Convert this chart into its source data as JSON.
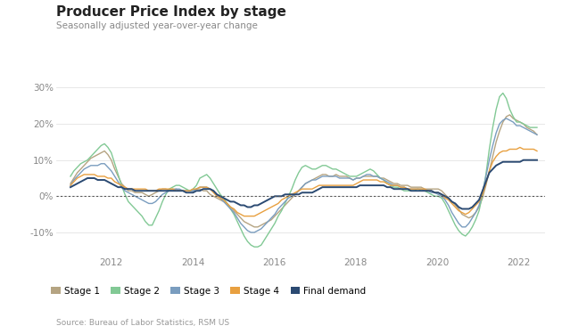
{
  "title": "Producer Price Index by stage",
  "subtitle": "Seasonally adjusted year-over-year change",
  "source": "Source: Bureau of Labor Statistics, RSM US",
  "ylim": [
    -15,
    33
  ],
  "yticks": [
    -10,
    0,
    10,
    20,
    30
  ],
  "ytick_labels": [
    "-10%",
    "0%",
    "10%",
    "20%",
    "30%"
  ],
  "background_color": "#ffffff",
  "colors": {
    "stage1": "#b5a482",
    "stage2": "#82c995",
    "stage3": "#7a9dbf",
    "stage4": "#e8a040",
    "final": "#2b4a72"
  },
  "legend": [
    "Stage 1",
    "Stage 2",
    "Stage 3",
    "Stage 4",
    "Final demand"
  ]
}
